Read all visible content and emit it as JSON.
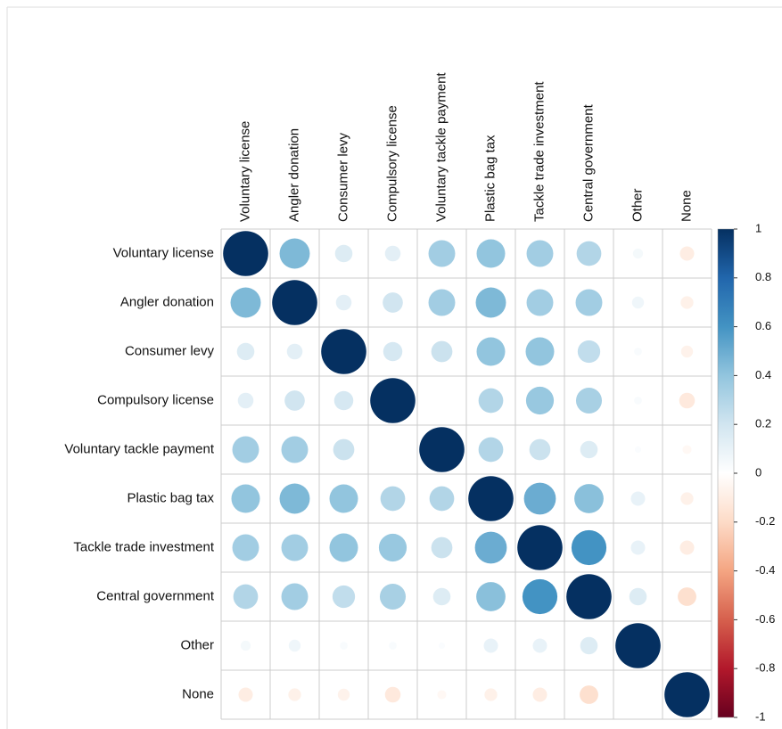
{
  "chart_data": {
    "type": "corrplot",
    "variables": [
      "Voluntary license",
      "Angler donation",
      "Consumer levy",
      "Compulsory license",
      "Voluntary tackle payment",
      "Plastic bag tax",
      "Tackle trade investment",
      "Central government",
      "Other",
      "None"
    ],
    "matrix": [
      [
        1,
        0.45,
        0.15,
        0.12,
        0.35,
        0.4,
        0.35,
        0.3,
        0.05,
        -0.1
      ],
      [
        0.45,
        1,
        0.12,
        0.2,
        0.35,
        0.45,
        0.35,
        0.35,
        0.07,
        -0.08
      ],
      [
        0.15,
        0.12,
        1,
        0.18,
        0.22,
        0.4,
        0.4,
        0.25,
        0.03,
        -0.07
      ],
      [
        0.12,
        0.2,
        0.18,
        1,
        0,
        0.3,
        0.38,
        0.33,
        0.03,
        -0.12
      ],
      [
        0.35,
        0.35,
        0.22,
        0,
        1,
        0.3,
        0.22,
        0.15,
        0.02,
        -0.04
      ],
      [
        0.4,
        0.45,
        0.4,
        0.3,
        0.3,
        1,
        0.5,
        0.42,
        0.1,
        -0.08
      ],
      [
        0.35,
        0.35,
        0.4,
        0.38,
        0.22,
        0.5,
        1,
        0.6,
        0.1,
        -0.1
      ],
      [
        0.3,
        0.35,
        0.25,
        0.33,
        0.15,
        0.42,
        0.6,
        1,
        0.15,
        -0.17
      ],
      [
        0.05,
        0.07,
        0.03,
        0.03,
        0.02,
        0.1,
        0.1,
        0.15,
        1,
        0
      ],
      [
        -0.1,
        -0.08,
        -0.07,
        -0.12,
        -0.04,
        -0.08,
        -0.1,
        -0.17,
        0,
        1
      ]
    ],
    "clim": [
      -1,
      1
    ],
    "cticks": [
      1,
      0.8,
      0.6,
      0.4,
      0.2,
      0,
      -0.2,
      -0.4,
      -0.6,
      -0.8,
      -1
    ],
    "colors": [
      "#67001F",
      "#B2182B",
      "#D6604D",
      "#F4A582",
      "#FDDBC7",
      "#FFFFFF",
      "#D1E5F0",
      "#92C5DE",
      "#4393C3",
      "#2166AC",
      "#053061"
    ]
  }
}
